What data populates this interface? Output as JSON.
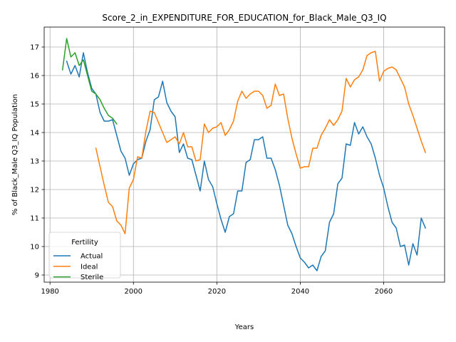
{
  "chart_data": {
    "type": "line",
    "title": "Score_2_in_EXPENDITURE_FOR_EDUCATION_for_Black_Male_Q3_IQ",
    "xlabel": "Years",
    "ylabel": "% of Black_Male Q3_IQ Population",
    "xlim": [
      1978.6,
      2074.6
    ],
    "ylim": [
      8.75,
      17.7
    ],
    "xticks": [
      1980,
      2000,
      2020,
      2040,
      2060
    ],
    "yticks": [
      9,
      10,
      11,
      12,
      13,
      14,
      15,
      16,
      17
    ],
    "grid": true,
    "legend": {
      "title": "Fertility",
      "location": "lower-left"
    },
    "series": [
      {
        "name": "Actual",
        "color": "#1f77b4",
        "x": [
          1984,
          1985,
          1986,
          1987,
          1988,
          1989,
          1990,
          1991,
          1992,
          1993,
          1994,
          1995,
          1996,
          1997,
          1998,
          1999,
          2000,
          2001,
          2002,
          2003,
          2004,
          2005,
          2006,
          2007,
          2008,
          2009,
          2010,
          2011,
          2012,
          2013,
          2014,
          2015,
          2016,
          2017,
          2018,
          2019,
          2020,
          2021,
          2022,
          2023,
          2024,
          2025,
          2026,
          2027,
          2028,
          2029,
          2030,
          2031,
          2032,
          2033,
          2034,
          2035,
          2036,
          2037,
          2038,
          2039,
          2040,
          2041,
          2042,
          2043,
          2044,
          2045,
          2046,
          2047,
          2048,
          2049,
          2050,
          2051,
          2052,
          2053,
          2054,
          2055,
          2056,
          2057,
          2058,
          2059,
          2060,
          2061,
          2062,
          2063,
          2064,
          2065,
          2066,
          2067,
          2068,
          2069,
          2070
        ],
        "y": [
          16.5,
          16.05,
          16.35,
          15.95,
          16.8,
          16.1,
          15.55,
          15.35,
          14.7,
          14.4,
          14.4,
          14.45,
          13.9,
          13.35,
          13.1,
          12.5,
          12.9,
          13.05,
          13.1,
          13.7,
          14.1,
          15.15,
          15.25,
          15.8,
          15.05,
          14.75,
          14.55,
          13.3,
          13.6,
          13.1,
          13.05,
          12.5,
          11.95,
          13.0,
          12.35,
          12.1,
          11.5,
          10.95,
          10.5,
          11.05,
          11.15,
          11.95,
          11.95,
          12.95,
          13.05,
          13.75,
          13.75,
          13.85,
          13.1,
          13.1,
          12.7,
          12.15,
          11.45,
          10.75,
          10.45,
          10.0,
          9.6,
          9.45,
          9.25,
          9.35,
          9.15,
          9.65,
          9.85,
          10.85,
          11.15,
          12.2,
          12.4,
          13.6,
          13.55,
          14.35,
          13.95,
          14.2,
          13.85,
          13.6,
          13.1,
          12.5,
          12.05,
          11.4,
          10.85,
          10.65,
          10.0,
          10.05,
          9.35,
          10.1,
          9.7,
          11.0,
          10.65
        ]
      },
      {
        "name": "Ideal",
        "color": "#ff7f0e",
        "x": [
          1991,
          1992,
          1993,
          1994,
          1995,
          1996,
          1997,
          1998,
          1999,
          2000,
          2001,
          2002,
          2003,
          2004,
          2005,
          2006,
          2007,
          2008,
          2009,
          2010,
          2011,
          2012,
          2013,
          2014,
          2015,
          2016,
          2017,
          2018,
          2019,
          2020,
          2021,
          2022,
          2023,
          2024,
          2025,
          2026,
          2027,
          2028,
          2029,
          2030,
          2031,
          2032,
          2033,
          2034,
          2035,
          2036,
          2037,
          2038,
          2039,
          2040,
          2041,
          2042,
          2043,
          2044,
          2045,
          2046,
          2047,
          2048,
          2049,
          2050,
          2051,
          2052,
          2053,
          2054,
          2055,
          2056,
          2057,
          2058,
          2059,
          2060,
          2061,
          2062,
          2063,
          2064,
          2065,
          2066,
          2067,
          2068,
          2069,
          2070
        ],
        "y": [
          13.45,
          12.8,
          12.15,
          11.55,
          11.4,
          10.9,
          10.75,
          10.45,
          12.05,
          12.35,
          13.15,
          13.1,
          14.05,
          14.75,
          14.7,
          14.35,
          14.0,
          13.65,
          13.75,
          13.85,
          13.6,
          14.0,
          13.5,
          13.5,
          13.0,
          13.05,
          14.3,
          14.0,
          14.15,
          14.2,
          14.35,
          13.9,
          14.1,
          14.4,
          15.1,
          15.45,
          15.2,
          15.35,
          15.45,
          15.45,
          15.3,
          14.85,
          14.95,
          15.7,
          15.3,
          15.35,
          14.5,
          13.8,
          13.25,
          12.75,
          12.8,
          12.8,
          13.45,
          13.45,
          13.9,
          14.15,
          14.45,
          14.25,
          14.45,
          14.75,
          15.9,
          15.6,
          15.85,
          15.95,
          16.2,
          16.7,
          16.8,
          16.85,
          15.8,
          16.15,
          16.25,
          16.3,
          16.2,
          15.9,
          15.6,
          15.0,
          14.6,
          14.15,
          13.7,
          13.3
        ]
      },
      {
        "name": "Sterile",
        "color": "#2ca02c",
        "x": [
          1983,
          1984,
          1985,
          1986,
          1987,
          1988,
          1989,
          1990,
          1991,
          1992,
          1993,
          1994,
          1995,
          1996
        ],
        "y": [
          16.2,
          17.3,
          16.65,
          16.8,
          16.35,
          16.55,
          16.0,
          15.45,
          15.35,
          15.15,
          14.85,
          14.6,
          14.5,
          14.3
        ]
      }
    ]
  }
}
